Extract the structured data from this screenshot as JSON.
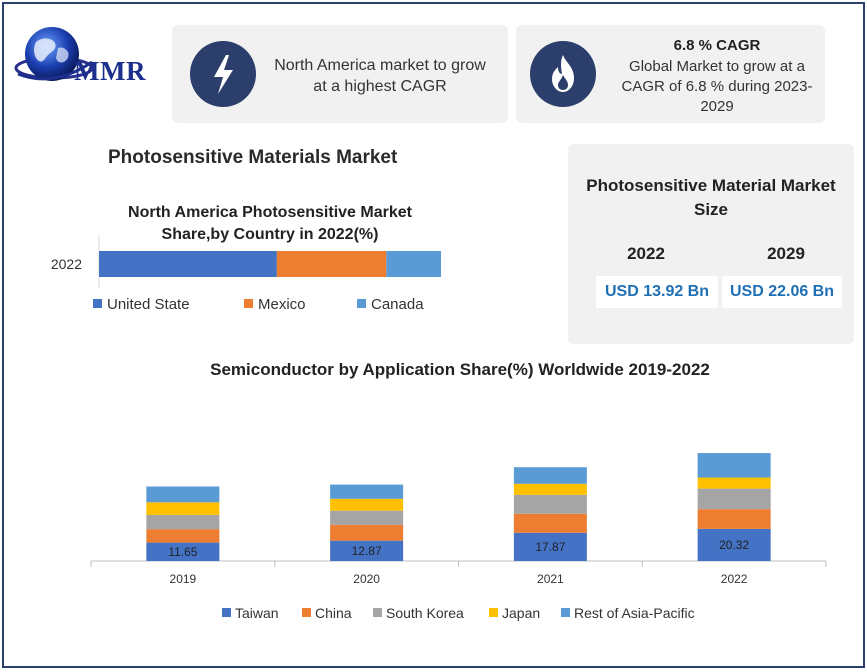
{
  "logo": {
    "text": "MMR",
    "icon": "globe-icon"
  },
  "highlight_cards": [
    {
      "icon": "lightning-bolt-icon",
      "text": "North America market to grow at a highest CAGR"
    },
    {
      "icon": "flame-icon",
      "title": "6.8 % CAGR",
      "text": "Global Market to grow at a CAGR of 6.8 % during 2023-2029"
    }
  ],
  "main_title": "Photosensitive Materials Market",
  "market_size": {
    "title": "Photosensitive Material Market Size",
    "years": [
      {
        "year": "2022",
        "value": "USD 13.92 Bn"
      },
      {
        "year": "2029",
        "value": "USD 22.06 Bn"
      }
    ],
    "value_color": "#1f6fb5"
  },
  "chart_data": [
    {
      "type": "bar",
      "orientation": "horizontal-stacked",
      "title": "North America Photosensitive Market Share,by Country in 2022(%)",
      "categories": [
        "2022"
      ],
      "series": [
        {
          "name": "United State",
          "values": [
            52
          ],
          "color": "#4472c4"
        },
        {
          "name": "Mexico",
          "values": [
            32
          ],
          "color": "#ed7d31"
        },
        {
          "name": "Canada",
          "values": [
            16
          ],
          "color": "#5b9bd5"
        }
      ],
      "xlim": [
        0,
        100
      ],
      "legend": "bottom"
    },
    {
      "type": "bar",
      "orientation": "vertical-stacked",
      "title": "Semiconductor by Application Share(%) Worldwide 2019-2022",
      "categories": [
        "2019",
        "2020",
        "2021",
        "2022"
      ],
      "series": [
        {
          "name": "Taiwan",
          "values": [
            11.65,
            12.87,
            17.87,
            20.32
          ],
          "color": "#4472c4",
          "data_labels": [
            "11.65",
            "12.87",
            "17.87",
            "20.32"
          ]
        },
        {
          "name": "China",
          "values": [
            8.5,
            10.0,
            12.0,
            12.5
          ],
          "color": "#ed7d31"
        },
        {
          "name": "South Korea",
          "values": [
            9.0,
            9.0,
            12.0,
            13.0
          ],
          "color": "#a5a5a5"
        },
        {
          "name": "Japan",
          "values": [
            8.0,
            7.5,
            7.0,
            7.0
          ],
          "color": "#ffc000"
        },
        {
          "name": "Rest of Asia-Pacific",
          "values": [
            10.0,
            9.0,
            10.5,
            15.5
          ],
          "color": "#5b9bd5"
        }
      ],
      "grid": false,
      "legend": "bottom"
    }
  ]
}
